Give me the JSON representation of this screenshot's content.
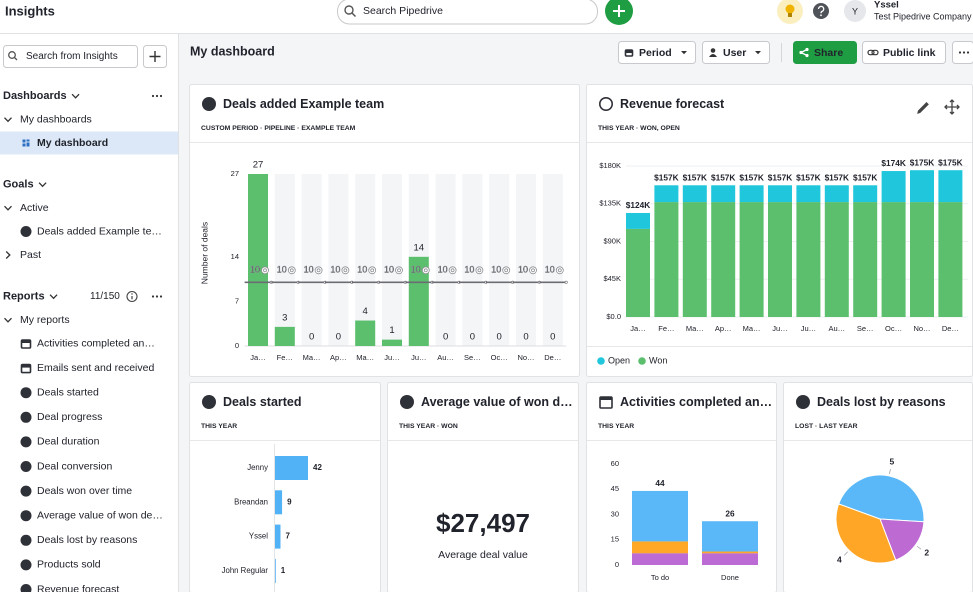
{
  "header": {
    "title": "Insights",
    "search_placeholder": "Search Pipedrive",
    "user_initial": "Y",
    "user_name": "Yssel",
    "company": "Test Pipedrive Company"
  },
  "sidebar": {
    "search_placeholder": "Search from Insights",
    "sections": [
      {
        "title": "Dashboards",
        "menu": true,
        "groups": [
          {
            "title": "My dashboards",
            "expanded": true,
            "items": [
              {
                "label": "My dashboard",
                "icon": "dashboard",
                "selected": true
              }
            ]
          }
        ]
      },
      {
        "title": "Goals",
        "groups": [
          {
            "title": "Active",
            "expanded": true,
            "items": [
              {
                "label": "Deals added Example te…",
                "icon": "dollar"
              }
            ]
          },
          {
            "title": "Past",
            "expanded": false,
            "items": []
          }
        ]
      },
      {
        "title": "Reports",
        "count": "11/150",
        "menu": true,
        "groups": [
          {
            "title": "My reports",
            "expanded": true,
            "items": [
              {
                "label": "Activities completed an…",
                "icon": "calendar"
              },
              {
                "label": "Emails sent and received",
                "icon": "calendar"
              },
              {
                "label": "Deals started",
                "icon": "dollar"
              },
              {
                "label": "Deal progress",
                "icon": "dollar"
              },
              {
                "label": "Deal duration",
                "icon": "dollar"
              },
              {
                "label": "Deal conversion",
                "icon": "dollar"
              },
              {
                "label": "Deals won over time",
                "icon": "dollar"
              },
              {
                "label": "Average value of won de…",
                "icon": "dollar"
              },
              {
                "label": "Deals lost by reasons",
                "icon": "dollar"
              },
              {
                "label": "Products sold",
                "icon": "dollar"
              },
              {
                "label": "Revenue forecast",
                "icon": "dollar"
              }
            ]
          }
        ]
      }
    ]
  },
  "dashboard": {
    "title": "My dashboard",
    "buttons": [
      "Period",
      "User",
      "Share",
      "Public link"
    ]
  },
  "kpi": {
    "title": "Average value of won d…",
    "subtitle": "THIS YEAR · WON",
    "value": "$27,497",
    "caption": "Average deal value",
    "icon": "dollar"
  },
  "chart_data": [
    {
      "type": "bar",
      "icon": "dollar",
      "title": "Deals added Example team",
      "subtitle": "CUSTOM PERIOD · PIPELINE · EXAMPLE TEAM",
      "y_label": "Number of deals",
      "categories": [
        "Ja…",
        "Fe…",
        "Ma…",
        "Ap…",
        "Ma…",
        "Ju…",
        "Ju…",
        "Au…",
        "Se…",
        "Oc…",
        "No…",
        "De…"
      ],
      "values": [
        27,
        3,
        0,
        0,
        4,
        1,
        14,
        0,
        0,
        0,
        0,
        0
      ],
      "goals": [
        10,
        10,
        10,
        10,
        10,
        10,
        10,
        10,
        10,
        10,
        10,
        10
      ],
      "color": "#5bbf6d",
      "goal_color": "#6b6d73",
      "ylim": [
        0,
        27
      ],
      "yticks": [
        0,
        7,
        14,
        27
      ]
    },
    {
      "type": "stacked_bar",
      "icon": "revenue",
      "title": "Revenue forecast",
      "subtitle": "THIS YEAR · WON, OPEN",
      "categories": [
        "Ja…",
        "Fe…",
        "Ma…",
        "Ap…",
        "Ma…",
        "Ju…",
        "Ju…",
        "Au…",
        "Se…",
        "Oc…",
        "No…",
        "De…"
      ],
      "series": [
        {
          "name": "Won",
          "color": "#5bbf6d",
          "values": [
            105000,
            137000,
            137000,
            137000,
            137000,
            137000,
            137000,
            137000,
            137000,
            137000,
            137000,
            137000
          ]
        },
        {
          "name": "Open",
          "color": "#1fc6dc",
          "values": [
            19000,
            20000,
            20000,
            20000,
            20000,
            20000,
            20000,
            20000,
            20000,
            37000,
            38000,
            38000
          ]
        }
      ],
      "total_labels": [
        "$124K",
        "$157K",
        "$157K",
        "$157K",
        "$157K",
        "$157K",
        "$157K",
        "$157K",
        "$157K",
        "$174K",
        "$175K",
        "$175K"
      ],
      "ylim": [
        0,
        180000
      ],
      "yticks": [
        {
          "value": 0,
          "label": "$0.0"
        },
        {
          "value": 45000,
          "label": "$45K"
        },
        {
          "value": 90000,
          "label": "$90K"
        },
        {
          "value": 135000,
          "label": "$135K"
        },
        {
          "value": 180000,
          "label": "$180K"
        }
      ],
      "grid": true,
      "legend": "bottom"
    },
    {
      "type": "hbar",
      "icon": "dollar",
      "title": "Deals started",
      "subtitle": "THIS YEAR",
      "categories": [
        "Jenny",
        "Breandan",
        "Yssel",
        "John Regular"
      ],
      "values": [
        42,
        9,
        7,
        1
      ],
      "color": "#52b2f6"
    },
    {
      "type": "stacked_bar",
      "icon": "calendar",
      "title": "Activities completed an…",
      "subtitle": "THIS YEAR",
      "categories": [
        "To do",
        "Done"
      ],
      "series": [
        {
          "color": "#bb6bd3",
          "values": [
            7,
            7
          ]
        },
        {
          "color": "#ffa726",
          "values": [
            7,
            1
          ]
        },
        {
          "color": "#5ab8f8",
          "values": [
            30,
            18
          ]
        }
      ],
      "total_labels": [
        "44",
        "26"
      ],
      "ylim": [
        0,
        60
      ],
      "yticks": [
        0,
        15,
        30,
        45,
        60
      ]
    },
    {
      "type": "pie",
      "icon": "dollar",
      "title": "Deals lost by reasons",
      "subtitle": "LOST · LAST YEAR",
      "values": [
        5,
        2,
        4
      ],
      "colors": [
        "#5ab8f8",
        "#bd6bd3",
        "#ffa626"
      ]
    }
  ]
}
